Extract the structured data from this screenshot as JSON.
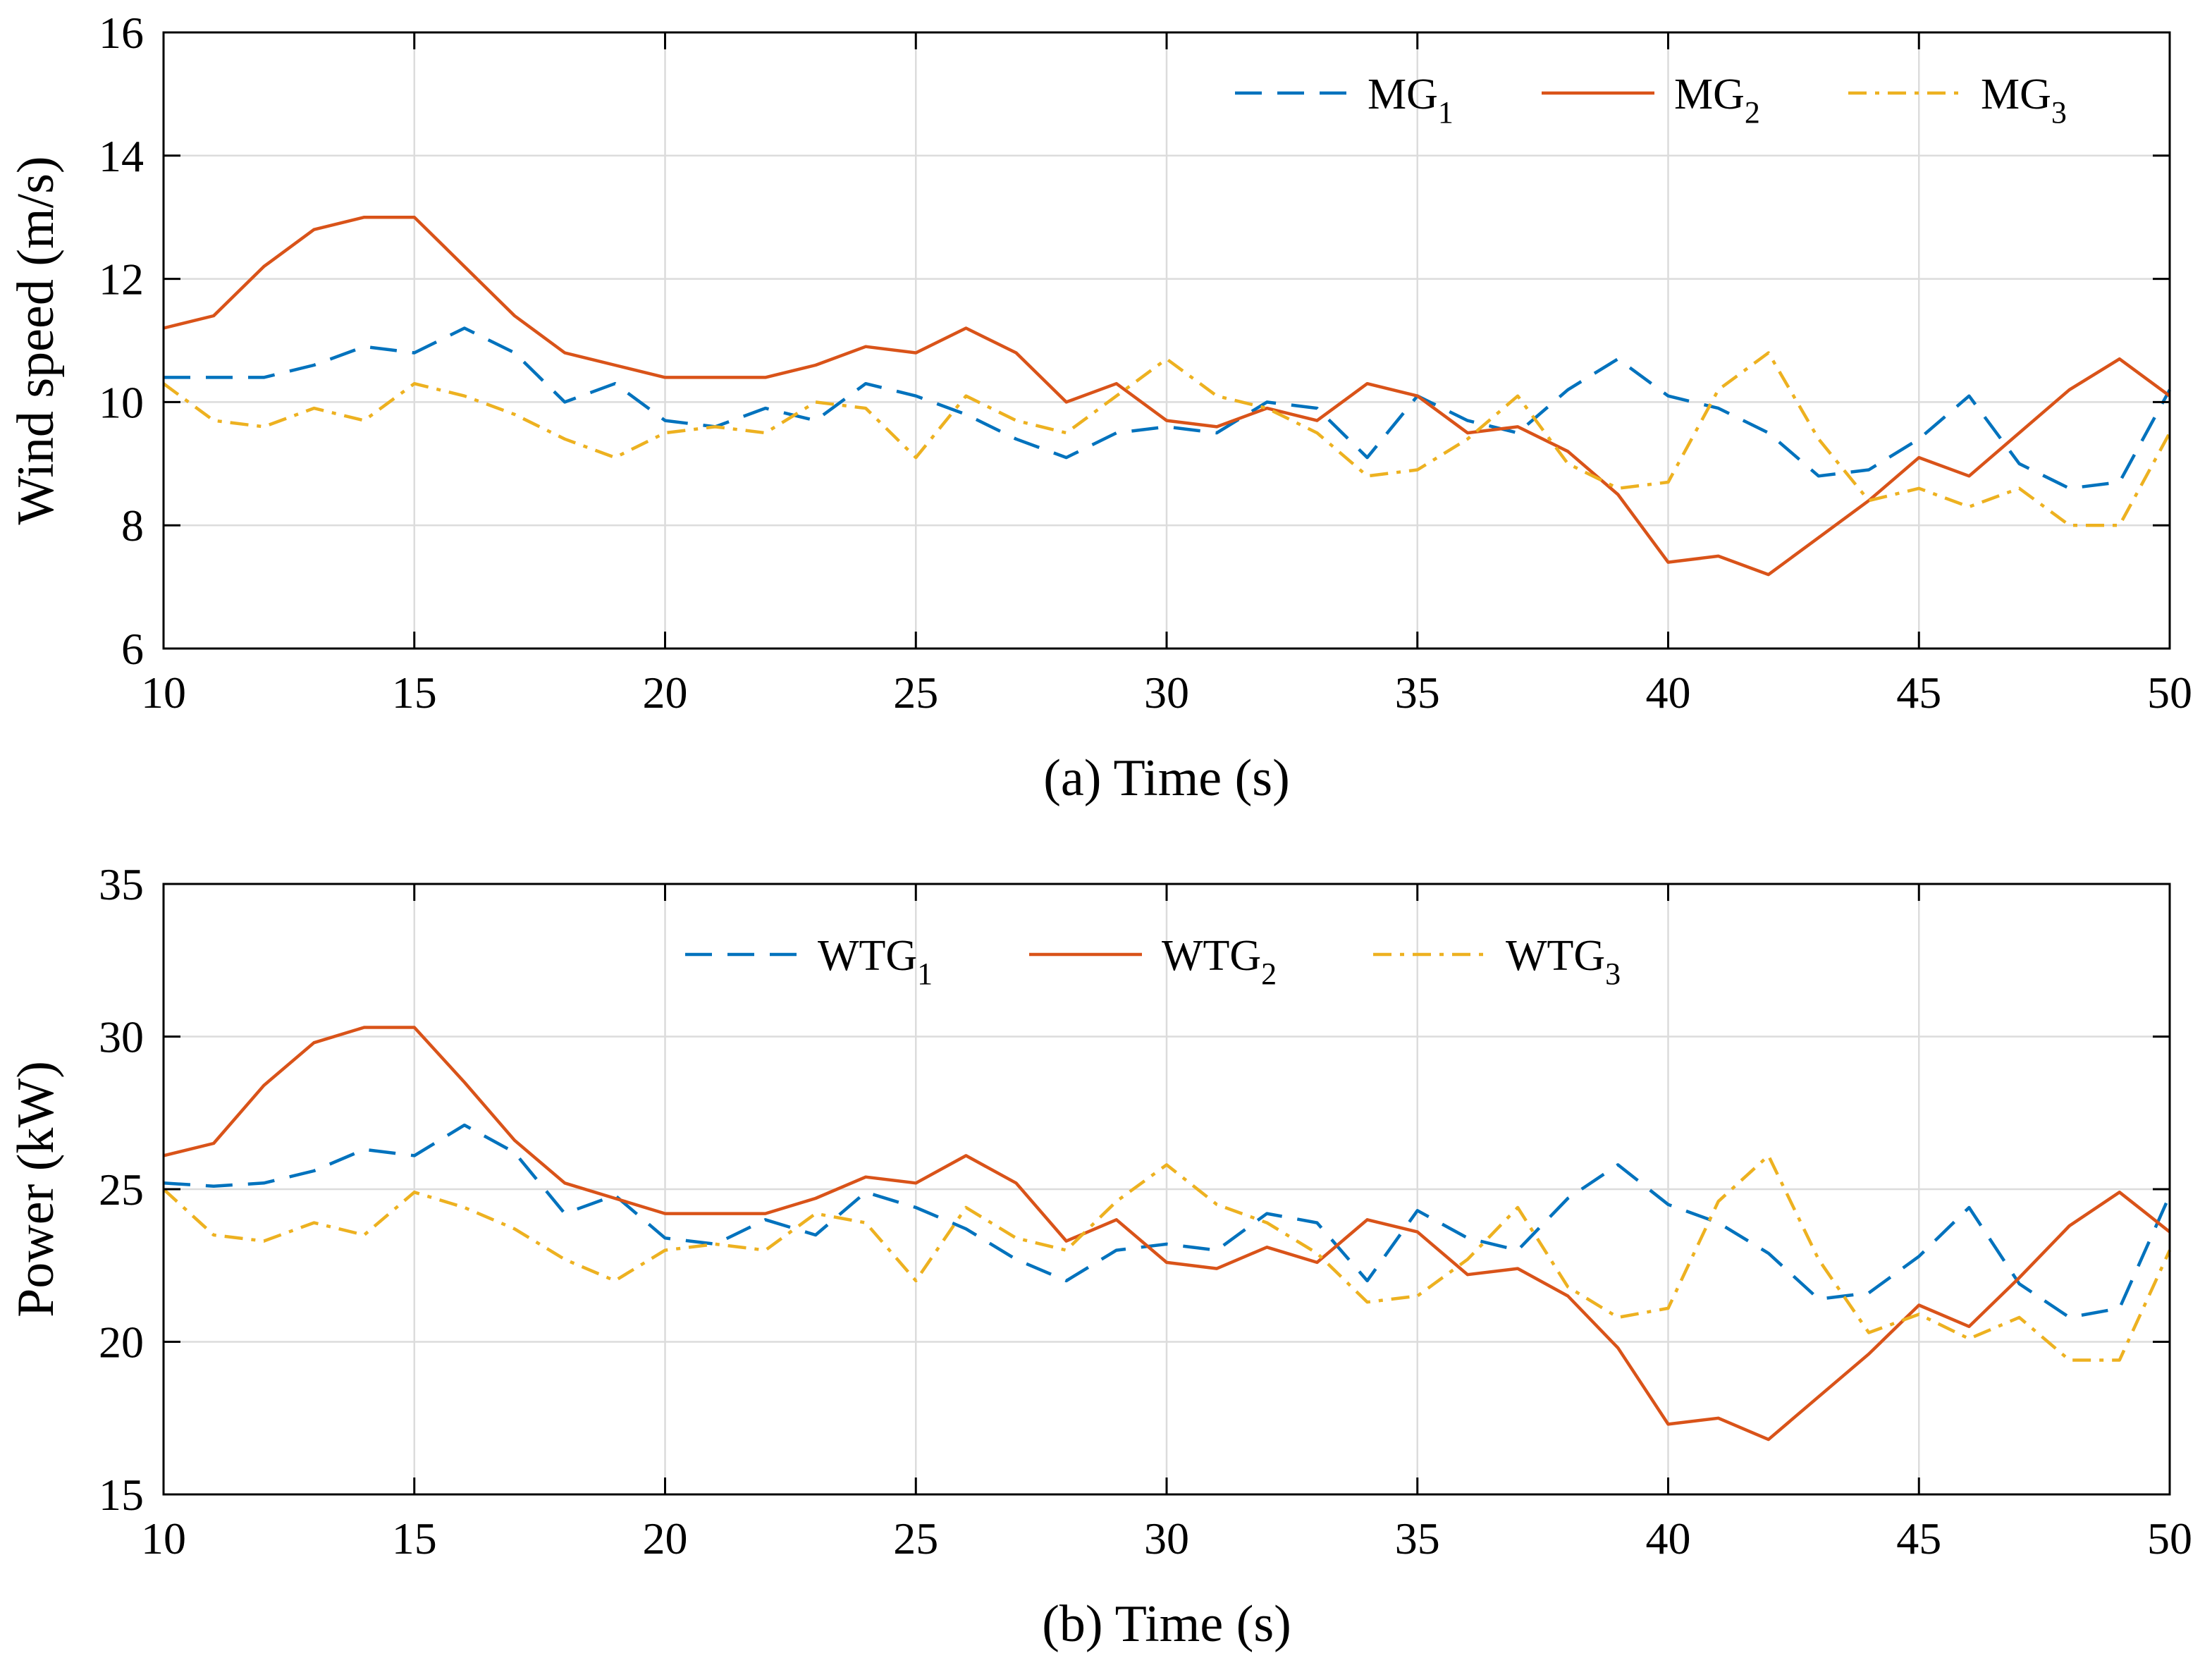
{
  "chart_data": [
    {
      "type": "line",
      "title": "",
      "xlabel": "(a) Time (s)",
      "ylabel": "Wind speed (m/s)",
      "xlim": [
        10,
        50
      ],
      "ylim": [
        6,
        16
      ],
      "xticks": [
        10,
        15,
        20,
        25,
        30,
        35,
        40,
        45,
        50
      ],
      "yticks": [
        6,
        8,
        10,
        12,
        14,
        16
      ],
      "grid": true,
      "legend": {
        "placement": "top-right",
        "orientation": "horizontal"
      },
      "x": [
        10,
        11,
        12,
        13,
        14,
        15,
        16,
        17,
        18,
        19,
        20,
        21,
        22,
        23,
        24,
        25,
        26,
        27,
        28,
        29,
        30,
        31,
        32,
        33,
        34,
        35,
        36,
        37,
        38,
        39,
        40,
        41,
        42,
        43,
        44,
        45,
        46,
        47,
        48,
        49,
        50
      ],
      "series": [
        {
          "name": "MG",
          "subscript": "1",
          "color": "#0072BD",
          "style": "dashed",
          "values": [
            10.4,
            10.4,
            10.4,
            10.6,
            10.9,
            10.8,
            11.2,
            10.8,
            10.0,
            10.3,
            9.7,
            9.6,
            9.9,
            9.7,
            10.3,
            10.1,
            9.8,
            9.4,
            9.1,
            9.5,
            9.6,
            9.5,
            10.0,
            9.9,
            9.1,
            10.1,
            9.7,
            9.5,
            10.2,
            10.7,
            10.1,
            9.9,
            9.5,
            8.8,
            8.9,
            9.4,
            10.1,
            9.0,
            8.6,
            8.7,
            10.2
          ]
        },
        {
          "name": "MG",
          "subscript": "2",
          "color": "#D95319",
          "style": "solid",
          "values": [
            11.2,
            11.4,
            12.2,
            12.8,
            13.0,
            13.0,
            12.2,
            11.4,
            10.8,
            10.6,
            10.4,
            10.4,
            10.4,
            10.6,
            10.9,
            10.8,
            11.2,
            10.8,
            10.0,
            10.3,
            9.7,
            9.6,
            9.9,
            9.7,
            10.3,
            10.1,
            9.5,
            9.6,
            9.2,
            8.5,
            7.4,
            7.5,
            7.2,
            7.8,
            8.4,
            9.1,
            8.8,
            9.5,
            10.2,
            10.7,
            10.1
          ]
        },
        {
          "name": "MG",
          "subscript": "3",
          "color": "#EDB120",
          "style": "dashdot",
          "values": [
            10.3,
            9.7,
            9.6,
            9.9,
            9.7,
            10.3,
            10.1,
            9.8,
            9.4,
            9.1,
            9.5,
            9.6,
            9.5,
            10.0,
            9.9,
            9.1,
            10.1,
            9.7,
            9.5,
            10.1,
            10.7,
            10.1,
            9.9,
            9.5,
            8.8,
            8.9,
            9.4,
            10.1,
            9.0,
            8.6,
            8.7,
            10.2,
            10.8,
            9.4,
            8.4,
            8.6,
            8.3,
            8.6,
            8.0,
            8.0,
            9.5
          ]
        }
      ]
    },
    {
      "type": "line",
      "title": "",
      "xlabel": "(b) Time (s)",
      "ylabel": "Power (kW)",
      "xlim": [
        10,
        50
      ],
      "ylim": [
        15,
        35
      ],
      "xticks": [
        10,
        15,
        20,
        25,
        30,
        35,
        40,
        45,
        50
      ],
      "yticks": [
        15,
        20,
        25,
        30,
        35
      ],
      "grid": true,
      "legend": {
        "placement": "top-center",
        "orientation": "horizontal"
      },
      "x": [
        10,
        11,
        12,
        13,
        14,
        15,
        16,
        17,
        18,
        19,
        20,
        21,
        22,
        23,
        24,
        25,
        26,
        27,
        28,
        29,
        30,
        31,
        32,
        33,
        34,
        35,
        36,
        37,
        38,
        39,
        40,
        41,
        42,
        43,
        44,
        45,
        46,
        47,
        48,
        49,
        50
      ],
      "series": [
        {
          "name": "WTG",
          "subscript": "1",
          "color": "#0072BD",
          "style": "dashed",
          "values": [
            25.2,
            25.1,
            25.2,
            25.6,
            26.3,
            26.1,
            27.1,
            26.2,
            24.2,
            24.8,
            23.4,
            23.2,
            24.0,
            23.5,
            24.9,
            24.4,
            23.7,
            22.7,
            22.0,
            23.0,
            23.2,
            23.0,
            24.2,
            23.9,
            22.0,
            24.3,
            23.4,
            23.0,
            24.7,
            25.8,
            24.5,
            23.9,
            22.9,
            21.4,
            21.6,
            22.8,
            24.4,
            21.9,
            20.8,
            21.1,
            24.8
          ]
        },
        {
          "name": "WTG",
          "subscript": "2",
          "color": "#D95319",
          "style": "solid",
          "values": [
            26.1,
            26.5,
            28.4,
            29.8,
            30.3,
            30.3,
            28.5,
            26.6,
            25.2,
            24.7,
            24.2,
            24.2,
            24.2,
            24.7,
            25.4,
            25.2,
            26.1,
            25.2,
            23.3,
            24.0,
            22.6,
            22.4,
            23.1,
            22.6,
            24.0,
            23.6,
            22.2,
            22.4,
            21.5,
            19.8,
            17.3,
            17.5,
            16.8,
            18.2,
            19.6,
            21.2,
            20.5,
            22.1,
            23.8,
            24.9,
            23.6
          ]
        },
        {
          "name": "WTG",
          "subscript": "3",
          "color": "#EDB120",
          "style": "dashdot",
          "values": [
            25.0,
            23.5,
            23.3,
            23.9,
            23.5,
            24.9,
            24.4,
            23.7,
            22.7,
            22.0,
            23.0,
            23.2,
            23.0,
            24.2,
            23.9,
            22.0,
            24.4,
            23.4,
            23.0,
            24.6,
            25.8,
            24.5,
            23.9,
            22.9,
            21.3,
            21.5,
            22.7,
            24.4,
            21.8,
            20.8,
            21.1,
            24.6,
            26.1,
            22.7,
            20.3,
            20.9,
            20.1,
            20.8,
            19.4,
            19.4,
            23.0
          ]
        }
      ]
    }
  ]
}
